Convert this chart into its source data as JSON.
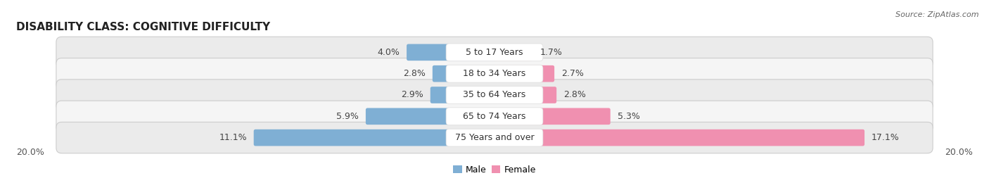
{
  "title": "DISABILITY CLASS: COGNITIVE DIFFICULTY",
  "source_text": "Source: ZipAtlas.com",
  "categories": [
    "5 to 17 Years",
    "18 to 34 Years",
    "35 to 64 Years",
    "65 to 74 Years",
    "75 Years and over"
  ],
  "male_values": [
    4.0,
    2.8,
    2.9,
    5.9,
    11.1
  ],
  "female_values": [
    1.7,
    2.7,
    2.8,
    5.3,
    17.1
  ],
  "male_color": "#7fafd4",
  "female_color": "#f090b0",
  "row_bg_color_odd": "#ebebeb",
  "row_bg_color_even": "#f5f5f5",
  "row_border_color": "#cccccc",
  "max_value": 20.0,
  "x_axis_label_left": "20.0%",
  "x_axis_label_right": "20.0%",
  "title_fontsize": 11,
  "label_fontsize": 9,
  "bar_label_fontsize": 9,
  "category_fontsize": 9,
  "source_fontsize": 8
}
